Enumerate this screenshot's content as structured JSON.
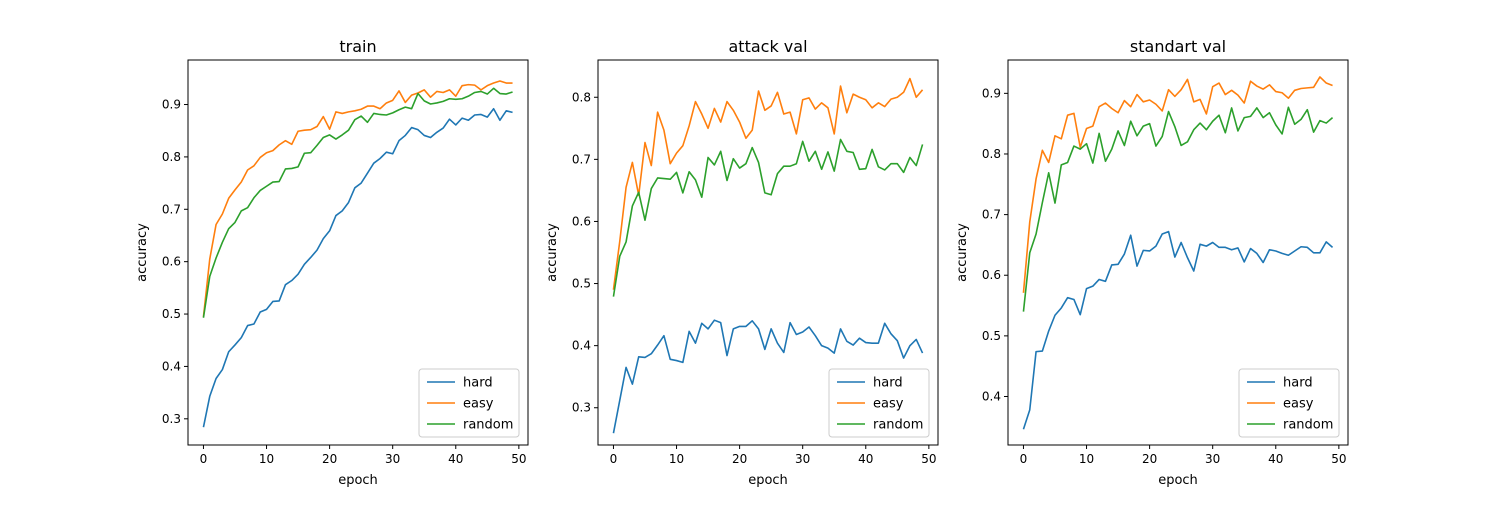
{
  "colors": {
    "hard": "#1f77b4",
    "easy": "#ff7f0e",
    "random": "#2ca02c",
    "axis": "#000000",
    "legend_border": "#cccccc"
  },
  "chart_data": [
    {
      "type": "line",
      "title": "train",
      "xlabel": "epoch",
      "ylabel": "accuracy",
      "xlim": [
        -2.45,
        51.45
      ],
      "ylim": [
        0.25,
        0.985
      ],
      "xticks": [
        0,
        10,
        20,
        30,
        40,
        50
      ],
      "yticks": [
        0.3,
        0.4,
        0.5,
        0.6,
        0.7,
        0.8,
        0.9
      ],
      "legend": "lower-right",
      "grid": false,
      "x": [
        0,
        1,
        2,
        3,
        4,
        5,
        6,
        7,
        8,
        9,
        10,
        11,
        12,
        13,
        14,
        15,
        16,
        17,
        18,
        19,
        20,
        21,
        22,
        23,
        24,
        25,
        26,
        27,
        28,
        29,
        30,
        31,
        32,
        33,
        34,
        35,
        36,
        37,
        38,
        39,
        40,
        41,
        42,
        43,
        44,
        45,
        46,
        47,
        48,
        49
      ],
      "series": [
        {
          "name": "hard",
          "values": [
            0.284,
            0.343,
            0.377,
            0.394,
            0.428,
            0.441,
            0.455,
            0.478,
            0.481,
            0.504,
            0.509,
            0.524,
            0.525,
            0.556,
            0.564,
            0.576,
            0.595,
            0.608,
            0.622,
            0.644,
            0.659,
            0.688,
            0.697,
            0.713,
            0.741,
            0.75,
            0.769,
            0.788,
            0.797,
            0.809,
            0.806,
            0.831,
            0.841,
            0.856,
            0.852,
            0.841,
            0.837,
            0.847,
            0.855,
            0.872,
            0.861,
            0.874,
            0.87,
            0.88,
            0.881,
            0.876,
            0.892,
            0.87,
            0.888,
            0.885
          ]
        },
        {
          "name": "easy",
          "values": [
            0.495,
            0.605,
            0.671,
            0.691,
            0.721,
            0.737,
            0.752,
            0.775,
            0.783,
            0.799,
            0.808,
            0.812,
            0.823,
            0.831,
            0.824,
            0.849,
            0.851,
            0.852,
            0.858,
            0.877,
            0.853,
            0.886,
            0.883,
            0.886,
            0.888,
            0.891,
            0.897,
            0.897,
            0.892,
            0.903,
            0.908,
            0.926,
            0.904,
            0.918,
            0.922,
            0.928,
            0.914,
            0.925,
            0.923,
            0.928,
            0.916,
            0.936,
            0.938,
            0.937,
            0.928,
            0.936,
            0.941,
            0.945,
            0.941,
            0.941
          ]
        },
        {
          "name": "random",
          "values": [
            0.493,
            0.572,
            0.607,
            0.637,
            0.663,
            0.675,
            0.697,
            0.703,
            0.722,
            0.736,
            0.744,
            0.752,
            0.753,
            0.777,
            0.778,
            0.781,
            0.807,
            0.808,
            0.822,
            0.837,
            0.842,
            0.834,
            0.842,
            0.851,
            0.871,
            0.878,
            0.866,
            0.883,
            0.881,
            0.88,
            0.884,
            0.89,
            0.895,
            0.892,
            0.921,
            0.907,
            0.901,
            0.903,
            0.906,
            0.911,
            0.91,
            0.911,
            0.916,
            0.923,
            0.925,
            0.92,
            0.931,
            0.921,
            0.92,
            0.924
          ]
        }
      ]
    },
    {
      "type": "line",
      "title": "attack val",
      "xlabel": "epoch",
      "ylabel": "accuracy",
      "xlim": [
        -2.45,
        51.45
      ],
      "ylim": [
        0.24,
        0.86
      ],
      "xticks": [
        0,
        10,
        20,
        30,
        40,
        50
      ],
      "yticks": [
        0.3,
        0.4,
        0.5,
        0.6,
        0.7,
        0.8
      ],
      "legend": "lower-right",
      "grid": false,
      "x": [
        0,
        1,
        2,
        3,
        4,
        5,
        6,
        7,
        8,
        9,
        10,
        11,
        12,
        13,
        14,
        15,
        16,
        17,
        18,
        19,
        20,
        21,
        22,
        23,
        24,
        25,
        26,
        27,
        28,
        29,
        30,
        31,
        32,
        33,
        34,
        35,
        36,
        37,
        38,
        39,
        40,
        41,
        42,
        43,
        44,
        45,
        46,
        47,
        48,
        49
      ],
      "series": [
        {
          "name": "hard",
          "values": [
            0.259,
            0.312,
            0.365,
            0.338,
            0.382,
            0.381,
            0.387,
            0.401,
            0.416,
            0.378,
            0.376,
            0.373,
            0.423,
            0.404,
            0.436,
            0.427,
            0.441,
            0.437,
            0.384,
            0.427,
            0.431,
            0.431,
            0.44,
            0.427,
            0.394,
            0.427,
            0.404,
            0.389,
            0.437,
            0.418,
            0.422,
            0.43,
            0.416,
            0.4,
            0.396,
            0.388,
            0.427,
            0.407,
            0.401,
            0.412,
            0.405,
            0.404,
            0.404,
            0.436,
            0.419,
            0.408,
            0.38,
            0.4,
            0.41,
            0.388
          ]
        },
        {
          "name": "easy",
          "values": [
            0.49,
            0.568,
            0.655,
            0.695,
            0.642,
            0.727,
            0.69,
            0.776,
            0.747,
            0.693,
            0.71,
            0.722,
            0.754,
            0.793,
            0.773,
            0.75,
            0.782,
            0.76,
            0.793,
            0.779,
            0.76,
            0.734,
            0.747,
            0.81,
            0.779,
            0.786,
            0.808,
            0.773,
            0.776,
            0.741,
            0.796,
            0.799,
            0.781,
            0.791,
            0.783,
            0.741,
            0.818,
            0.775,
            0.805,
            0.8,
            0.796,
            0.783,
            0.791,
            0.785,
            0.797,
            0.8,
            0.808,
            0.83,
            0.8,
            0.812
          ]
        },
        {
          "name": "random",
          "values": [
            0.479,
            0.544,
            0.567,
            0.625,
            0.647,
            0.602,
            0.653,
            0.67,
            0.669,
            0.668,
            0.679,
            0.646,
            0.68,
            0.667,
            0.639,
            0.703,
            0.691,
            0.713,
            0.666,
            0.701,
            0.686,
            0.693,
            0.719,
            0.695,
            0.646,
            0.643,
            0.677,
            0.689,
            0.689,
            0.693,
            0.729,
            0.697,
            0.713,
            0.684,
            0.712,
            0.681,
            0.732,
            0.713,
            0.711,
            0.684,
            0.685,
            0.716,
            0.688,
            0.683,
            0.693,
            0.693,
            0.679,
            0.703,
            0.69,
            0.724
          ]
        }
      ]
    },
    {
      "type": "line",
      "title": "standart val",
      "xlabel": "epoch",
      "ylabel": "accuracy",
      "xlim": [
        -2.45,
        51.45
      ],
      "ylim": [
        0.32,
        0.955
      ],
      "xticks": [
        0,
        10,
        20,
        30,
        40,
        50
      ],
      "yticks": [
        0.4,
        0.5,
        0.6,
        0.7,
        0.8,
        0.9
      ],
      "legend": "lower-right",
      "grid": false,
      "x": [
        0,
        1,
        2,
        3,
        4,
        5,
        6,
        7,
        8,
        9,
        10,
        11,
        12,
        13,
        14,
        15,
        16,
        17,
        18,
        19,
        20,
        21,
        22,
        23,
        24,
        25,
        26,
        27,
        28,
        29,
        30,
        31,
        32,
        33,
        34,
        35,
        36,
        37,
        38,
        39,
        40,
        41,
        42,
        43,
        44,
        45,
        46,
        47,
        48,
        49
      ],
      "series": [
        {
          "name": "hard",
          "values": [
            0.346,
            0.378,
            0.474,
            0.475,
            0.508,
            0.534,
            0.546,
            0.563,
            0.56,
            0.535,
            0.578,
            0.582,
            0.593,
            0.59,
            0.617,
            0.618,
            0.635,
            0.666,
            0.615,
            0.641,
            0.64,
            0.648,
            0.668,
            0.672,
            0.63,
            0.654,
            0.629,
            0.607,
            0.651,
            0.648,
            0.654,
            0.646,
            0.646,
            0.642,
            0.645,
            0.622,
            0.644,
            0.636,
            0.621,
            0.642,
            0.64,
            0.636,
            0.633,
            0.64,
            0.647,
            0.646,
            0.637,
            0.637,
            0.655,
            0.646
          ]
        },
        {
          "name": "easy",
          "values": [
            0.571,
            0.688,
            0.759,
            0.806,
            0.786,
            0.83,
            0.825,
            0.864,
            0.867,
            0.811,
            0.842,
            0.846,
            0.878,
            0.884,
            0.875,
            0.868,
            0.888,
            0.878,
            0.898,
            0.886,
            0.889,
            0.882,
            0.871,
            0.906,
            0.895,
            0.906,
            0.923,
            0.886,
            0.89,
            0.866,
            0.911,
            0.917,
            0.898,
            0.905,
            0.897,
            0.884,
            0.92,
            0.912,
            0.907,
            0.914,
            0.903,
            0.901,
            0.892,
            0.905,
            0.908,
            0.909,
            0.91,
            0.927,
            0.917,
            0.913
          ]
        },
        {
          "name": "random",
          "values": [
            0.54,
            0.637,
            0.668,
            0.72,
            0.769,
            0.719,
            0.782,
            0.786,
            0.813,
            0.808,
            0.817,
            0.785,
            0.834,
            0.788,
            0.808,
            0.838,
            0.814,
            0.854,
            0.83,
            0.846,
            0.85,
            0.813,
            0.829,
            0.87,
            0.845,
            0.814,
            0.82,
            0.84,
            0.851,
            0.84,
            0.854,
            0.864,
            0.835,
            0.876,
            0.838,
            0.86,
            0.862,
            0.876,
            0.86,
            0.868,
            0.848,
            0.833,
            0.877,
            0.849,
            0.857,
            0.873,
            0.836,
            0.855,
            0.851,
            0.86
          ]
        }
      ]
    }
  ]
}
